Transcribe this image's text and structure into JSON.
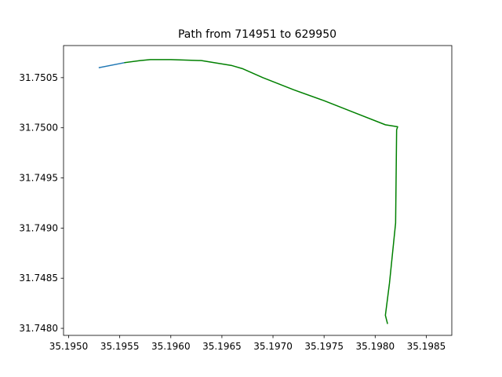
{
  "chart_data": {
    "type": "line",
    "title": "Path from 714951 to 629950",
    "xlabel": "",
    "ylabel": "",
    "xlim": [
      35.19495,
      35.19875
    ],
    "ylim": [
      31.74793,
      31.75082
    ],
    "grid": false,
    "legend": null,
    "xticks": [
      35.195,
      35.1955,
      35.196,
      35.1965,
      35.197,
      35.1975,
      35.198,
      35.1985
    ],
    "xtick_labels": [
      "35.1950",
      "35.1955",
      "35.1960",
      "35.1965",
      "35.1970",
      "35.1975",
      "35.1980",
      "35.1985"
    ],
    "yticks": [
      31.748,
      31.7485,
      31.749,
      31.7495,
      31.75,
      31.7505
    ],
    "ytick_labels": [
      "31.7480",
      "31.7485",
      "31.7490",
      "31.7495",
      "31.7500",
      "31.7505"
    ],
    "series": [
      {
        "color": "#1f77b4",
        "x": [
          35.1953,
          35.19555
        ],
        "y": [
          31.7506,
          31.75065
        ]
      },
      {
        "color": "#008000",
        "x": [
          35.19555,
          35.1957,
          35.1958,
          35.196,
          35.1963,
          35.1966,
          35.1967,
          35.1969,
          35.1972,
          35.1975,
          35.1978,
          35.1981,
          35.19822,
          35.19821,
          35.1982,
          35.19818,
          35.19814,
          35.1981,
          35.19812
        ],
        "y": [
          31.75065,
          31.75067,
          31.75068,
          31.75068,
          31.75067,
          31.75062,
          31.75059,
          31.7505,
          31.75038,
          31.75027,
          31.75015,
          31.75003,
          31.75001,
          31.74998,
          31.74905,
          31.74885,
          31.74845,
          31.74813,
          31.74805
        ]
      }
    ]
  }
}
